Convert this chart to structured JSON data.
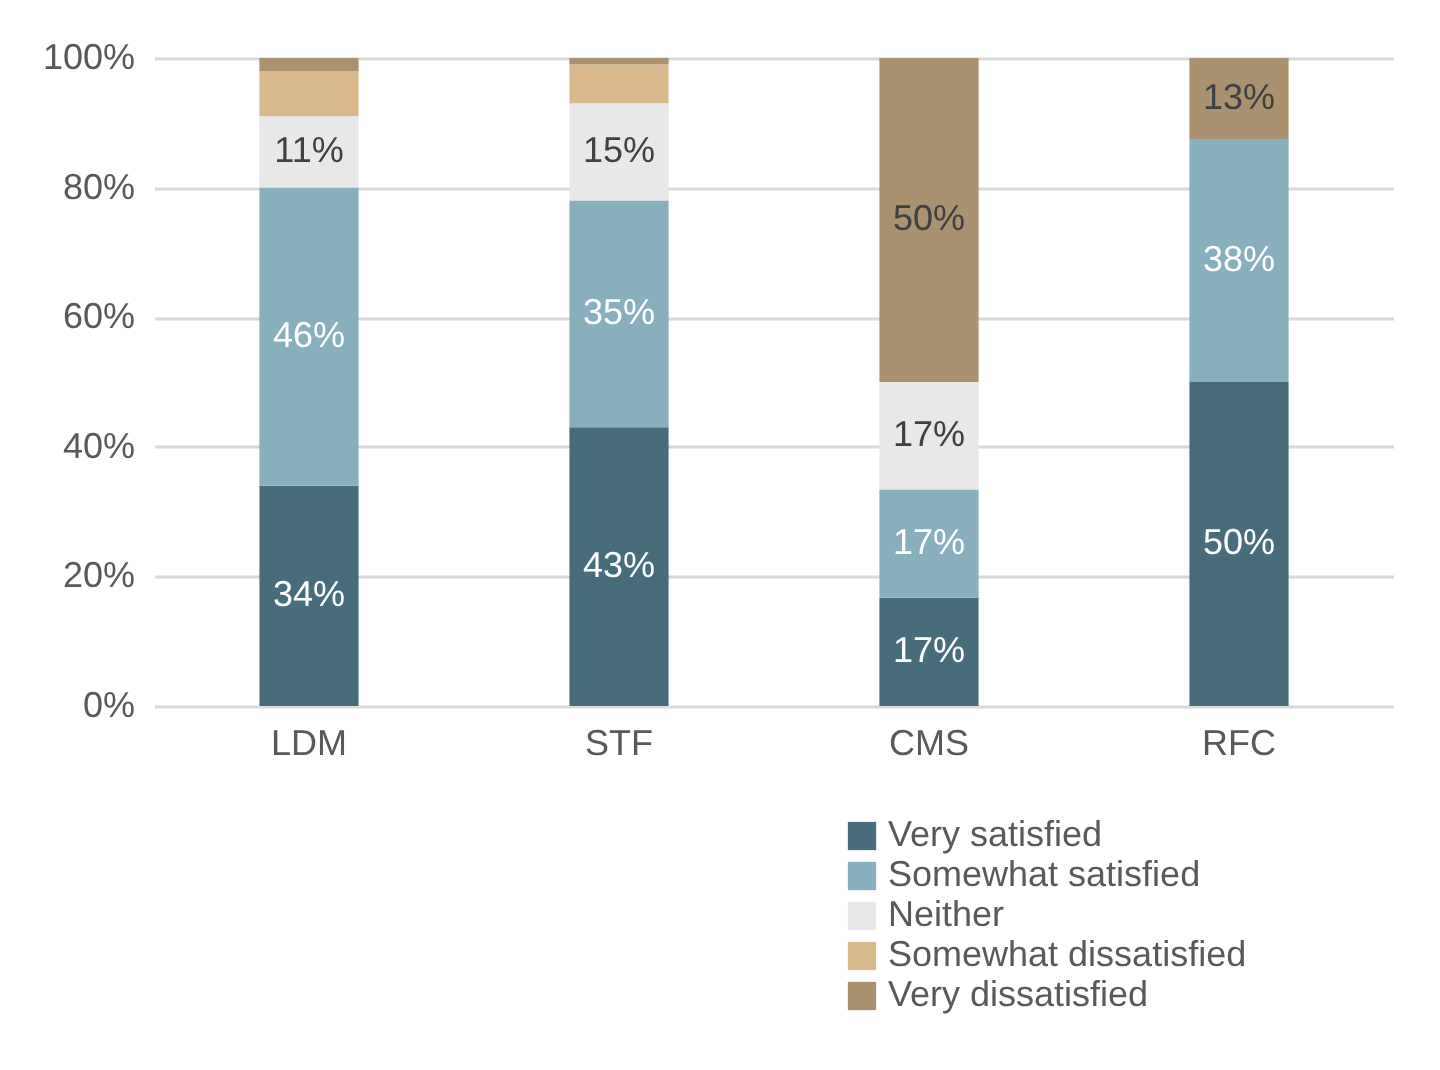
{
  "chart_data": {
    "type": "bar",
    "stacked": true,
    "categories": [
      "LDM",
      "STF",
      "CMS",
      "RFC"
    ],
    "series": [
      {
        "name": "Very satisfied",
        "color": "#476d7c",
        "values": [
          34,
          43,
          16.7,
          50
        ],
        "value_labels": [
          "34%",
          "43%",
          "17%",
          "50%"
        ]
      },
      {
        "name": "Somewhat satisfied",
        "color": "#87afbd",
        "values": [
          46,
          35,
          16.7,
          37.5
        ],
        "value_labels": [
          "46%",
          "35%",
          "17%",
          "38%"
        ]
      },
      {
        "name": "Neither",
        "color": "#e8e8e8",
        "values": [
          11,
          15,
          16.6,
          0
        ],
        "value_labels": [
          "11%",
          "15%",
          "17%",
          null
        ]
      },
      {
        "name": "Somewhat dissatisfied",
        "color": "#d9b98b",
        "values": [
          7,
          6,
          0,
          0
        ],
        "value_labels": [
          null,
          null,
          null,
          null
        ]
      },
      {
        "name": "Very dissatisfied",
        "color": "#aa9270",
        "values": [
          2,
          1,
          50,
          12.5
        ],
        "value_labels": [
          null,
          null,
          "50%",
          "13%"
        ]
      }
    ],
    "ylim": [
      0,
      100
    ],
    "yticks": [
      {
        "value": 0,
        "label": "0%"
      },
      {
        "value": 20,
        "label": "20%"
      },
      {
        "value": 40,
        "label": "40%"
      },
      {
        "value": 60,
        "label": "60%"
      },
      {
        "value": 80,
        "label": "80%"
      },
      {
        "value": 100,
        "label": "100%"
      }
    ],
    "grid": "y",
    "legend": "bottom"
  }
}
